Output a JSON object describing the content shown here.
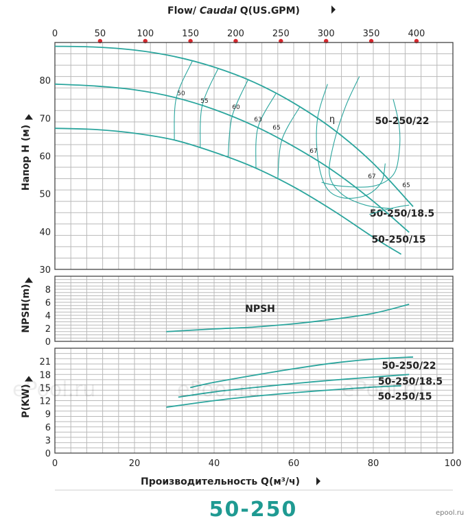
{
  "top_axis": {
    "label_prefix": "Flow/ ",
    "label_italic": "Caudal",
    "label_suffix": " Q(US.GPM)",
    "ticks": [
      0,
      50,
      100,
      150,
      200,
      250,
      300,
      350,
      400
    ]
  },
  "bottom_axis": {
    "label": "Производительность Q(м³/ч)",
    "ticks": [
      0,
      20,
      40,
      60,
      80,
      100
    ]
  },
  "model": "50-250",
  "watermark": "ePool.ru",
  "logo": "epool.ru",
  "colors": {
    "curve": "#2aa59d",
    "grid": "#b9b9b9",
    "dot": "#d9262c",
    "title": "#1f9a92"
  },
  "chart_data": [
    {
      "type": "line",
      "panel": "head",
      "ylabel": "Напор H (м)",
      "xlim": [
        0,
        100
      ],
      "ylim": [
        30,
        90
      ],
      "yticks": [
        30,
        40,
        50,
        60,
        70,
        80
      ],
      "series": [
        {
          "name": "50-250/22",
          "x": [
            0,
            10,
            20,
            30,
            40,
            50,
            60,
            70,
            80,
            90
          ],
          "y": [
            89,
            88.8,
            88,
            86.3,
            83.5,
            79.5,
            74,
            67,
            58,
            46.6
          ]
        },
        {
          "name": "50-250/18.5",
          "x": [
            0,
            10,
            20,
            30,
            40,
            50,
            60,
            70,
            80,
            89
          ],
          "y": [
            79,
            78.5,
            77.5,
            75.5,
            72.3,
            68,
            62.5,
            56,
            48,
            39.8
          ]
        },
        {
          "name": "50-250/15",
          "x": [
            0,
            10,
            20,
            30,
            40,
            50,
            60,
            70,
            80,
            87
          ],
          "y": [
            67.3,
            67,
            66,
            64.2,
            61,
            57,
            51.8,
            45.5,
            38.5,
            34
          ]
        }
      ],
      "efficiency": {
        "label": "η",
        "contours": [
          "50",
          "55",
          "60",
          "63",
          "65",
          "67",
          "67",
          "65"
        ]
      }
    },
    {
      "type": "line",
      "panel": "npsh",
      "ylabel": "NPSH(m)",
      "xlim": [
        0,
        100
      ],
      "ylim": [
        0,
        10
      ],
      "yticks": [
        0,
        2,
        4,
        6,
        8
      ],
      "series": [
        {
          "name": "NPSH",
          "x": [
            28,
            40,
            50,
            60,
            70,
            80,
            89
          ],
          "y": [
            1.5,
            1.9,
            2.2,
            2.7,
            3.4,
            4.3,
            5.7
          ]
        }
      ]
    },
    {
      "type": "line",
      "panel": "power",
      "ylabel": "P(KW)",
      "xlim": [
        0,
        100
      ],
      "ylim": [
        0,
        24
      ],
      "yticks": [
        0,
        3,
        6,
        9,
        12,
        15,
        18,
        21
      ],
      "series": [
        {
          "name": "50-250/22",
          "x": [
            34,
            40,
            50,
            60,
            70,
            80,
            90
          ],
          "y": [
            15,
            16.2,
            17.8,
            19.3,
            20.6,
            21.5,
            22
          ]
        },
        {
          "name": "50-250/18.5",
          "x": [
            31,
            40,
            50,
            60,
            70,
            80,
            89
          ],
          "y": [
            12.8,
            14,
            15,
            15.9,
            16.7,
            17.4,
            18
          ]
        },
        {
          "name": "50-250/15",
          "x": [
            28,
            40,
            50,
            60,
            70,
            80,
            87
          ],
          "y": [
            10.5,
            12,
            13,
            13.8,
            14.5,
            15.1,
            15.4
          ]
        }
      ]
    }
  ]
}
